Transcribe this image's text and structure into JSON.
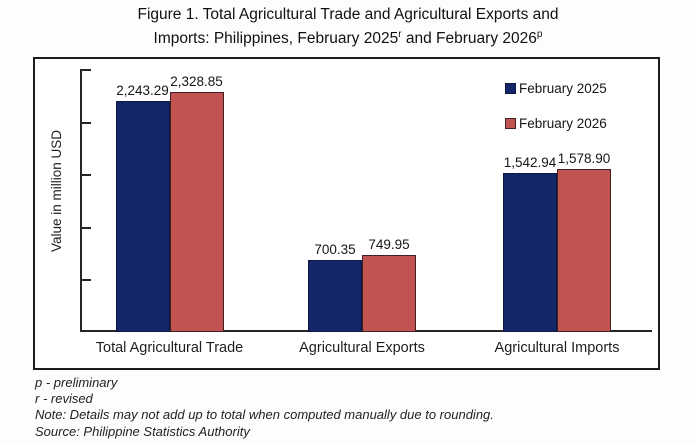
{
  "title": {
    "line1": "Figure 1. Total Agricultural Trade and Agricultural Exports and",
    "line2_pre": "Imports: Philippines, February 2025",
    "sup_r": "r",
    "line2_mid": " and February 2026",
    "sup_p": "p"
  },
  "chart_data": {
    "type": "bar",
    "title": "Figure 1. Total Agricultural Trade and Agricultural Exports and Imports: Philippines, February 2025r and February 2026p",
    "categories": [
      "Total Agricultural Trade",
      "Agricultural Exports",
      "Agricultural Imports"
    ],
    "series": [
      {
        "name": "February 2025",
        "color": "#14266a",
        "border": "#0d1840",
        "values": [
          2243.29,
          700.35,
          1542.94
        ],
        "labels": [
          "2,243.29",
          "700.35",
          "1,542.94"
        ]
      },
      {
        "name": "February 2026",
        "color": "#c15450",
        "border": "#3f2123",
        "values": [
          2328.85,
          749.95,
          1578.9
        ],
        "labels": [
          "2,328.85",
          "749.95",
          "1,578.90"
        ]
      }
    ],
    "xlabel": "",
    "ylabel": "Value in million USD",
    "ylim": [
      0,
      2500
    ],
    "ytick_step": 500,
    "ytick_labels_shown": false,
    "grid": false,
    "legend_position": "top-right"
  },
  "footnotes": [
    "p - preliminary",
    "r - revised",
    "Note: Details may not add up to total when computed manually due to rounding.",
    "Source: Philippine Statistics Authority"
  ]
}
